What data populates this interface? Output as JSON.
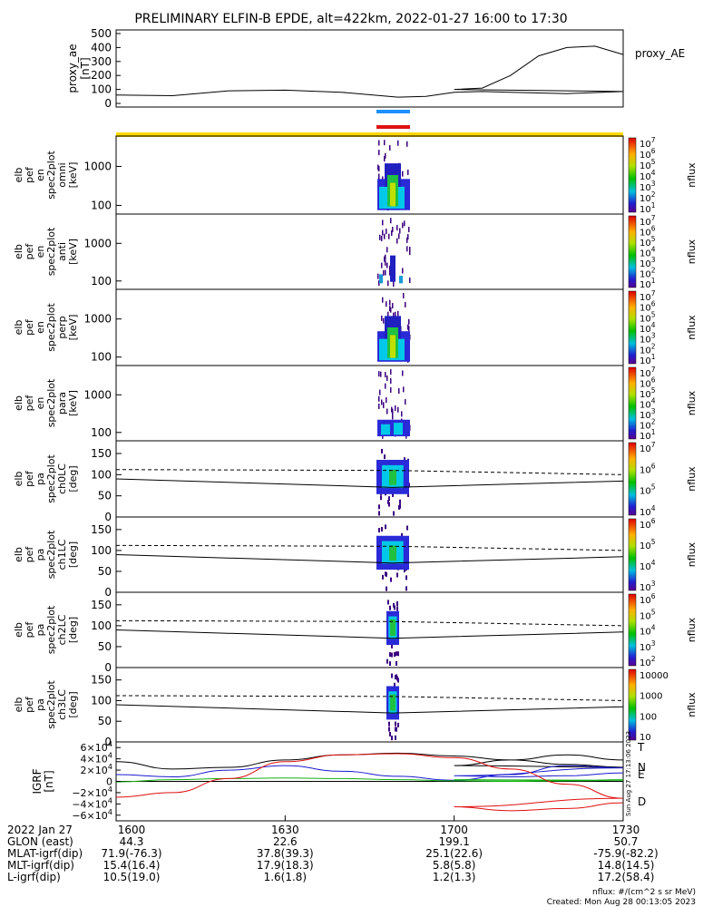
{
  "title": "PRELIMINARY ELFIN-B EPDE, alt=422km, 2022-01-27 16:00 to 17:30",
  "panels": [
    {
      "ylabel": [
        "proxy_ae",
        "[nT]"
      ],
      "yticks": [
        "0",
        "100",
        "200",
        "300",
        "400",
        "500"
      ],
      "side_label": "proxy_AE"
    },
    {
      "ylabel": [
        "elb",
        "pef",
        "en",
        "spec2plot",
        "omni",
        "[keV]"
      ],
      "yticks": [
        "100",
        "1000"
      ],
      "cbar_ticks": [
        "10^7",
        "10^6",
        "10^5",
        "10^4",
        "10^3",
        "10^2",
        "10^1"
      ],
      "cbar_label": "nflux"
    },
    {
      "ylabel": [
        "elb",
        "pef",
        "en",
        "spec2plot",
        "anti",
        "[keV]"
      ],
      "yticks": [
        "100",
        "1000"
      ],
      "cbar_ticks": [
        "10^7",
        "10^6",
        "10^5",
        "10^4",
        "10^3",
        "10^2",
        "10^1"
      ],
      "cbar_label": "nflux"
    },
    {
      "ylabel": [
        "elb",
        "pef",
        "en",
        "spec2plot",
        "perp",
        "[keV]"
      ],
      "yticks": [
        "100",
        "1000"
      ],
      "cbar_ticks": [
        "10^7",
        "10^6",
        "10^5",
        "10^4",
        "10^3",
        "10^2",
        "10^1"
      ],
      "cbar_label": "nflux"
    },
    {
      "ylabel": [
        "elb",
        "pef",
        "en",
        "spec2plot",
        "para",
        "[keV]"
      ],
      "yticks": [
        "100",
        "1000"
      ],
      "cbar_ticks": [
        "10^7",
        "10^6",
        "10^5",
        "10^4",
        "10^3",
        "10^2",
        "10^1"
      ],
      "cbar_label": "nflux"
    },
    {
      "ylabel": [
        "elb",
        "pef",
        "pa",
        "spec2plot",
        "ch0LC",
        "[deg]"
      ],
      "yticks": [
        "0",
        "50",
        "100",
        "150"
      ],
      "cbar_ticks": [
        "10^7",
        "10^6",
        "10^5",
        "10^4"
      ],
      "cbar_label": "nflux"
    },
    {
      "ylabel": [
        "elb",
        "pef",
        "pa",
        "spec2plot",
        "ch1LC",
        "[deg]"
      ],
      "yticks": [
        "0",
        "50",
        "100",
        "150"
      ],
      "cbar_ticks": [
        "10^6",
        "10^5",
        "10^4",
        "10^3"
      ],
      "cbar_label": "nflux"
    },
    {
      "ylabel": [
        "elb",
        "pef",
        "pa",
        "spec2plot",
        "ch2LC",
        "[deg]"
      ],
      "yticks": [
        "0",
        "50",
        "100",
        "150"
      ],
      "cbar_ticks": [
        "10^6",
        "10^5",
        "10^4",
        "10^3",
        "10^2"
      ],
      "cbar_label": "nflux"
    },
    {
      "ylabel": [
        "elb",
        "pef",
        "pa",
        "spec2plot",
        "ch3LC",
        "[deg]"
      ],
      "yticks": [
        "0",
        "50",
        "100",
        "150"
      ],
      "cbar_ticks": [
        "10000",
        "1000",
        "100",
        "10"
      ],
      "cbar_label": "nflux"
    },
    {
      "ylabel": [
        "IGRF",
        "[nT]"
      ],
      "yticks": [
        "6×10^4",
        "4×10^4",
        "2×10^4",
        "0",
        "−2×10^4",
        "−4×10^4",
        "−6×10^4"
      ],
      "legend": [
        "T",
        "N",
        "E",
        "D"
      ]
    }
  ],
  "colors": {
    "T": "#000000",
    "N": "#1a1ad0",
    "E": "#10b010",
    "D": "#e01010",
    "sunlight": "#ffd700",
    "bar_blue": "#1e90ff",
    "bar_red": "#e01010"
  },
  "xaxis": {
    "ticks": [
      "1600",
      "1630",
      "1700",
      "1730"
    ],
    "rows": [
      {
        "label": "2022 Jan 27",
        "vals": [
          "1600",
          "1630",
          "1700",
          "1730"
        ]
      },
      {
        "label": "GLON (east)",
        "vals": [
          "44.3",
          "22.6",
          "199.1",
          "50.7"
        ]
      },
      {
        "label": "MLAT-igrf(dip)",
        "vals": [
          "71.9(-76.3)",
          "37.8(39.3)",
          "25.1(22.6)",
          "-75.9(-82.2)"
        ]
      },
      {
        "label": "MLT-igrf(dip)",
        "vals": [
          "15.4(16.4)",
          "17.9(18.3)",
          "5.8(5.8)",
          "14.8(14.5)"
        ]
      },
      {
        "label": "L-igrf(dip)",
        "vals": [
          "10.5(19.0)",
          "1.6(1.8)",
          "1.2(1.3)",
          "17.2(58.4)"
        ]
      }
    ]
  },
  "footer": {
    "units": "nflux: #/(cm^2 s sr MeV)",
    "created": "Created: Mon Aug 28 00:13:05 2023",
    "stamp": "Sun Aug 27 17:13:06 2023"
  },
  "chart_data": {
    "type": "line",
    "title": "PRELIMINARY ELFIN-B EPDE, alt=422km, 2022-01-27 16:00 to 17:30",
    "xlim": [
      1600,
      1730
    ],
    "proxy_ae": {
      "x": [
        1600,
        1610,
        1620,
        1630,
        1640,
        1650,
        1655,
        1660,
        1665,
        1670,
        1680,
        1690,
        1700,
        1705,
        1710,
        1715,
        1720,
        1725,
        1730
      ],
      "y": [
        60,
        55,
        90,
        95,
        80,
        45,
        50,
        80,
        85,
        80,
        70,
        85,
        100,
        110,
        200,
        340,
        400,
        410,
        350
      ]
    },
    "igrf": {
      "x": [
        1600,
        1610,
        1620,
        1630,
        1640,
        1650,
        1660,
        1670,
        1680,
        1690,
        1700,
        1710,
        1720,
        1730
      ],
      "series": [
        {
          "name": "T",
          "values": [
            35000,
            22000,
            25000,
            38000,
            47000,
            50000,
            45000,
            38000,
            30000,
            25000,
            28000,
            38000,
            47000,
            38000
          ]
        },
        {
          "name": "N",
          "values": [
            12000,
            8000,
            20000,
            28000,
            18000,
            9000,
            2000,
            12000,
            28000,
            24000,
            10000,
            8000,
            10000,
            15000
          ]
        },
        {
          "name": "E",
          "values": [
            -1000,
            3000,
            5000,
            6000,
            5000,
            3000,
            1000,
            0,
            1000,
            2000,
            3000,
            2000,
            1000,
            3000
          ]
        },
        {
          "name": "D",
          "values": [
            -28000,
            -20000,
            5000,
            35000,
            47000,
            49000,
            42000,
            22000,
            -5000,
            -30000,
            -45000,
            -52000,
            -48000,
            -38000
          ]
        }
      ]
    }
  }
}
